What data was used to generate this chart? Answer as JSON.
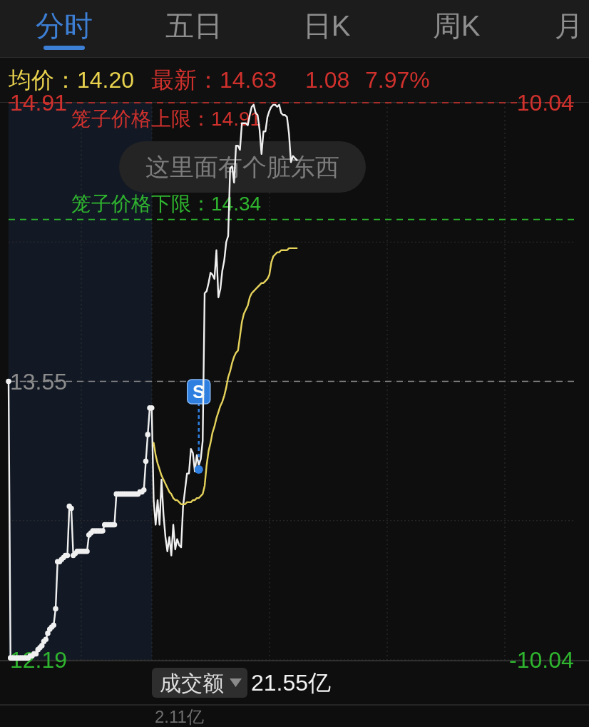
{
  "chart_data": {
    "type": "line",
    "annotations": [
      "分时",
      "五日",
      "日K",
      "周K",
      "月",
      "均价：14.20",
      "最新：14.63",
      "1.08",
      "7.97%",
      "这里面有个脏东西",
      "成交额",
      "21.55亿",
      "2.11亿"
    ],
    "categories": [
      null,
      null,
      null,
      null,
      null,
      null,
      null,
      null,
      null,
      null,
      null,
      null,
      null,
      null,
      null,
      null,
      null,
      null,
      null,
      null,
      null,
      null,
      null,
      null,
      null,
      null,
      null,
      null,
      null,
      null,
      null,
      null,
      null,
      null,
      null,
      null,
      null,
      null,
      null,
      null,
      null,
      null,
      null,
      null,
      null,
      null,
      null,
      null,
      null,
      null,
      null,
      null,
      null,
      null,
      null,
      null,
      null,
      null,
      null,
      null,
      null,
      null,
      null,
      null,
      null,
      null,
      null,
      null,
      null,
      null,
      null,
      null,
      null,
      null,
      null,
      null,
      null,
      null,
      null,
      null,
      null,
      null,
      null,
      null,
      null,
      null,
      null,
      null,
      null,
      null,
      null,
      null,
      null,
      null,
      null,
      null,
      null,
      null,
      null,
      null,
      null,
      null,
      null,
      null,
      null,
      null,
      null,
      null,
      null,
      null,
      null,
      null,
      null,
      null,
      null,
      null,
      null,
      null,
      null,
      null,
      null,
      null,
      null,
      null,
      null,
      null,
      null,
      null,
      null,
      null,
      null,
      null,
      null,
      null,
      null,
      null,
      null,
      null,
      null,
      null,
      null,
      null,
      null,
      null,
      null,
      null,
      null,
      null,
      null,
      null,
      null,
      null,
      null,
      null,
      null,
      null,
      null,
      null,
      null,
      null,
      null,
      null,
      null,
      null,
      null,
      null,
      null,
      null,
      null,
      null,
      null,
      null,
      null,
      null,
      null,
      null,
      null,
      null,
      null,
      null,
      null,
      null,
      null,
      null,
      null,
      null,
      null,
      null,
      null,
      null,
      null,
      null,
      null,
      null,
      null,
      null,
      null,
      null,
      null,
      null,
      null,
      null,
      null,
      null,
      null,
      null,
      null,
      null,
      null,
      null,
      null,
      null,
      null,
      null,
      null,
      null,
      null,
      null,
      null,
      null,
      null,
      null,
      null,
      null,
      null,
      null,
      null,
      null,
      null,
      null,
      null,
      null,
      null,
      null,
      null,
      null,
      null,
      null,
      null,
      null,
      null,
      null,
      null,
      null,
      null,
      null,
      null,
      null,
      null,
      null,
      null,
      null,
      null,
      null,
      null,
      null,
      null,
      null,
      null,
      null,
      null,
      null,
      null,
      null,
      null,
      null,
      null,
      null,
      null,
      null,
      null,
      null,
      null,
      null,
      null,
      null,
      null,
      null,
      null,
      null,
      null,
      null,
      null,
      null,
      null,
      null,
      null,
      null,
      null,
      null
    ],
    "series": [
      {
        "color": "#f0f0f0",
        "marker": "circle",
        "values": [
          13.55,
          12.2,
          12.2,
          12.2,
          12.2,
          12.2,
          12.2,
          12.2,
          12.2,
          12.2,
          12.2,
          12.21,
          12.21,
          12.22,
          12.22,
          12.24,
          12.25,
          12.26,
          12.28,
          12.29,
          12.32,
          12.34,
          12.35,
          12.36,
          12.44,
          12.67,
          12.67,
          12.68,
          12.69,
          12.7,
          12.7,
          12.94,
          12.93,
          12.7,
          12.71,
          12.72,
          12.72,
          12.72,
          12.72,
          12.72,
          12.72,
          12.8,
          12.81,
          12.82,
          12.82,
          12.82,
          12.82,
          12.82,
          12.82,
          12.85,
          12.85,
          12.85,
          12.85,
          12.85,
          12.85,
          13,
          13,
          13,
          13,
          13,
          13,
          13,
          13,
          13,
          13,
          13,
          13,
          13.01,
          13.01,
          13.02,
          13.16,
          13.29,
          13.42,
          13.42,
          null,
          null,
          null,
          null,
          null,
          null,
          null,
          null,
          null,
          null,
          null,
          null,
          null,
          null,
          null,
          null,
          null,
          null,
          null,
          null,
          null,
          null,
          null,
          null,
          null,
          null,
          null,
          null,
          null,
          null,
          null,
          null,
          null,
          null,
          null,
          null,
          null,
          null,
          null,
          null,
          null,
          null,
          null,
          null,
          null,
          null,
          null,
          null,
          null,
          null,
          null,
          null,
          null,
          null,
          null,
          null,
          null,
          null,
          null,
          null,
          null,
          null,
          null,
          null,
          null,
          null,
          null,
          null,
          null,
          null,
          null,
          null,
          null,
          null,
          null,
          null,
          null,
          null,
          null,
          null,
          null,
          null,
          null,
          null,
          null,
          null,
          null,
          null,
          null,
          null,
          null,
          null,
          null,
          null,
          null,
          null,
          null,
          null,
          null,
          null,
          null,
          null,
          null,
          null,
          null,
          null,
          null,
          null,
          null,
          null,
          null,
          null,
          null,
          null,
          null,
          null,
          null,
          null,
          null,
          null,
          null,
          null,
          null,
          null,
          null,
          null,
          null,
          null,
          null,
          null,
          null,
          null,
          null,
          null,
          null,
          null,
          null,
          null,
          null,
          null,
          null,
          null,
          null,
          null,
          null,
          null,
          null,
          null,
          null,
          null,
          null,
          null,
          null,
          null,
          null,
          null,
          null,
          null,
          null,
          null,
          null,
          null,
          null,
          null,
          null,
          null,
          null,
          null,
          null,
          null,
          null,
          null,
          null,
          null,
          null,
          null,
          null,
          null,
          null,
          null,
          null,
          null,
          null,
          null,
          null,
          null,
          null,
          null,
          null,
          null,
          null,
          null,
          null,
          null,
          null,
          null,
          null,
          null,
          null,
          null,
          null,
          null,
          null,
          null,
          null,
          null,
          null,
          null,
          null,
          null,
          null,
          null,
          null,
          null,
          null,
          null
        ]
      },
      {
        "color": "#f0f0f0",
        "values": [
          null,
          null,
          null,
          null,
          null,
          null,
          null,
          null,
          null,
          null,
          null,
          null,
          null,
          null,
          null,
          null,
          null,
          null,
          null,
          null,
          null,
          null,
          null,
          null,
          null,
          null,
          null,
          null,
          null,
          null,
          null,
          null,
          null,
          null,
          null,
          null,
          null,
          null,
          null,
          null,
          null,
          null,
          null,
          null,
          null,
          null,
          null,
          null,
          null,
          null,
          null,
          null,
          null,
          null,
          null,
          null,
          null,
          null,
          null,
          null,
          null,
          null,
          null,
          null,
          null,
          null,
          null,
          null,
          null,
          null,
          null,
          null,
          null,
          13.42,
          12.97,
          12.85,
          12.97,
          12.85,
          13.07,
          12.9,
          12.79,
          12.72,
          12.79,
          12.7,
          12.85,
          12.73,
          12.78,
          12.75,
          12.74,
          12.94,
          13.02,
          13.1,
          13.1,
          13.22,
          13.2,
          13.11,
          13.19,
          13.14,
          13.17,
          13.26,
          13.98,
          13.99,
          14.03,
          14.08,
          14.07,
          14.05,
          14.19,
          13.96,
          14,
          14.09,
          14.14,
          14.23,
          14.26,
          14.59,
          14.6,
          14.52,
          14.7,
          14.7,
          14.68,
          14.81,
          14.81,
          14.81,
          14.8,
          14.85,
          14.89,
          14.9,
          14.86,
          14.85,
          14.78,
          14.66,
          14.77,
          14.77,
          14.84,
          14.87,
          14.89,
          14.9,
          14.9,
          14.89,
          14.9,
          14.86,
          14.85,
          14.85,
          14.84,
          14.76,
          14.62,
          14.65,
          14.64,
          14.63,
          null,
          null,
          null,
          null,
          null,
          null,
          null,
          null,
          null,
          null,
          null,
          null,
          null,
          null,
          null,
          null,
          null,
          null,
          null,
          null,
          null,
          null,
          null,
          null,
          null,
          null,
          null,
          null,
          null,
          null,
          null,
          null,
          null,
          null,
          null,
          null,
          null,
          null,
          null,
          null,
          null,
          null,
          null,
          null,
          null,
          null,
          null,
          null,
          null,
          null,
          null,
          null,
          null,
          null,
          null,
          null,
          null,
          null,
          null,
          null,
          null,
          null,
          null,
          null,
          null,
          null,
          null,
          null,
          null,
          null,
          null,
          null,
          null,
          null,
          null,
          null,
          null,
          null,
          null,
          null,
          null,
          null,
          null,
          null,
          null,
          null,
          null,
          null,
          null,
          null,
          null,
          null,
          null,
          null,
          null,
          null,
          null,
          null,
          null,
          null,
          null,
          null,
          null,
          null,
          null,
          null,
          null,
          null,
          null,
          null,
          null,
          null,
          null,
          null,
          null,
          null,
          null,
          null,
          null,
          null,
          null,
          null,
          null,
          null,
          null,
          null,
          null,
          null,
          null,
          null,
          null,
          null,
          null,
          null,
          null,
          null,
          null,
          null,
          null,
          null,
          null,
          null
        ]
      },
      {
        "color": "#e6d35c",
        "values": [
          null,
          null,
          null,
          null,
          null,
          null,
          null,
          null,
          null,
          null,
          null,
          null,
          null,
          null,
          null,
          null,
          null,
          null,
          null,
          null,
          null,
          null,
          null,
          null,
          null,
          null,
          null,
          null,
          null,
          null,
          null,
          null,
          null,
          null,
          null,
          null,
          null,
          null,
          null,
          null,
          null,
          null,
          null,
          null,
          null,
          null,
          null,
          null,
          null,
          null,
          null,
          null,
          null,
          null,
          null,
          null,
          null,
          null,
          null,
          null,
          null,
          null,
          null,
          null,
          null,
          null,
          null,
          null,
          null,
          null,
          null,
          null,
          null,
          null,
          13.25,
          13.19,
          13.15,
          13.12,
          13.09,
          13.07,
          13.05,
          13.03,
          13.01,
          13,
          12.98,
          12.97,
          12.97,
          12.96,
          12.95,
          12.95,
          12.95,
          12.96,
          12.96,
          12.96,
          12.97,
          12.97,
          12.98,
          12.98,
          12.99,
          13,
          13.04,
          13.14,
          13.21,
          13.25,
          13.3,
          13.33,
          13.37,
          13.4,
          13.43,
          13.45,
          13.48,
          13.52,
          13.57,
          13.6,
          13.64,
          13.67,
          13.69,
          13.7,
          13.77,
          13.84,
          13.88,
          13.9,
          13.92,
          13.96,
          13.98,
          13.99,
          14,
          14.01,
          14.02,
          14.03,
          14.03,
          14.04,
          14.05,
          14.07,
          14.13,
          14.16,
          14.17,
          14.18,
          14.18,
          14.19,
          14.19,
          14.19,
          14.19,
          14.2,
          14.2,
          14.2,
          14.2,
          14.2,
          null,
          null,
          null,
          null,
          null,
          null,
          null,
          null,
          null,
          null,
          null,
          null,
          null,
          null,
          null,
          null,
          null,
          null,
          null,
          null,
          null,
          null,
          null,
          null,
          null,
          null,
          null,
          null,
          null,
          null,
          null,
          null,
          null,
          null,
          null,
          null,
          null,
          null,
          null,
          null,
          null,
          null,
          null,
          null,
          null,
          null,
          null,
          null,
          null,
          null,
          null,
          null,
          null,
          null,
          null,
          null,
          null,
          null,
          null,
          null,
          null,
          null,
          null,
          null,
          null,
          null,
          null,
          null,
          null,
          null,
          null,
          null,
          null,
          null,
          null,
          null,
          null,
          null,
          null,
          null,
          null,
          null,
          null,
          null,
          null,
          null,
          null,
          null,
          null,
          null,
          null,
          null,
          null,
          null,
          null,
          null,
          null,
          null,
          null,
          null,
          null,
          null,
          null,
          null,
          null,
          null,
          null,
          null,
          null,
          null,
          null,
          null,
          null,
          null,
          null,
          null,
          null,
          null,
          null,
          null,
          null,
          null,
          null,
          null,
          null,
          null,
          null,
          null,
          null,
          null,
          null,
          null,
          null,
          null,
          null,
          null,
          null,
          null,
          null,
          null,
          null,
          null
        ]
      },
      {
        "type": "scatter",
        "color": "#2f7fe0",
        "values": [
          null,
          null,
          null,
          null,
          null,
          null,
          null,
          null,
          null,
          null,
          null,
          null,
          null,
          null,
          null,
          null,
          null,
          null,
          null,
          null,
          null,
          null,
          null,
          null,
          null,
          null,
          null,
          null,
          null,
          null,
          null,
          null,
          null,
          null,
          null,
          null,
          null,
          null,
          null,
          null,
          null,
          null,
          null,
          null,
          null,
          null,
          null,
          null,
          null,
          null,
          null,
          null,
          null,
          null,
          null,
          null,
          null,
          null,
          null,
          null,
          null,
          null,
          null,
          null,
          null,
          null,
          null,
          null,
          null,
          null,
          null,
          null,
          null,
          null,
          null,
          null,
          null,
          null,
          null,
          null,
          null,
          null,
          null,
          null,
          null,
          null,
          null,
          null,
          null,
          null,
          null,
          null,
          null,
          null,
          null,
          null,
          null,
          13.12,
          null,
          null,
          null,
          null,
          null,
          null,
          null,
          null,
          null,
          null,
          null,
          null,
          null,
          null,
          null,
          null,
          null,
          null,
          null,
          null,
          null,
          null,
          null,
          null,
          null,
          null,
          null,
          null,
          null,
          null,
          null,
          null,
          null,
          null,
          null,
          null,
          null,
          null,
          null,
          null,
          null,
          null,
          null,
          null,
          null,
          null,
          null,
          null,
          null,
          null,
          null,
          null,
          null,
          null,
          null,
          null,
          null,
          null,
          null,
          null,
          null,
          null,
          null,
          null,
          null,
          null,
          null,
          null,
          null,
          null,
          null,
          null,
          null,
          null,
          null,
          null,
          null,
          null,
          null,
          null,
          null,
          null,
          null,
          null,
          null,
          null,
          null,
          null,
          null,
          null,
          null,
          null,
          null,
          null,
          null,
          null,
          null,
          null,
          null,
          null,
          null,
          null,
          null,
          null,
          null,
          null,
          null,
          null,
          null,
          null,
          null,
          null,
          null,
          null,
          null,
          null,
          null,
          null,
          null,
          null,
          null,
          null,
          null,
          null,
          null,
          null,
          null,
          null,
          null,
          null,
          null,
          null,
          null,
          null,
          null,
          null,
          null,
          null,
          null,
          null,
          null,
          null,
          null,
          null,
          null,
          null,
          null,
          null,
          null,
          null,
          null,
          null,
          null,
          null,
          null,
          null,
          null,
          null,
          null,
          null,
          null,
          null,
          null,
          null,
          null,
          null,
          null,
          null,
          null,
          null,
          null,
          null,
          null,
          null,
          null,
          null,
          null,
          null,
          null,
          null,
          null,
          null,
          null,
          null,
          null,
          null,
          null,
          null,
          null,
          null,
          null,
          null
        ],
        "value_labels": [
          null,
          null,
          null,
          null,
          null,
          null,
          null,
          null,
          null,
          null,
          null,
          null,
          null,
          null,
          null,
          null,
          null,
          null,
          null,
          null,
          null,
          null,
          null,
          null,
          null,
          null,
          null,
          null,
          null,
          null,
          null,
          null,
          null,
          null,
          null,
          null,
          null,
          null,
          null,
          null,
          null,
          null,
          null,
          null,
          null,
          null,
          null,
          null,
          null,
          null,
          null,
          null,
          null,
          null,
          null,
          null,
          null,
          null,
          null,
          null,
          null,
          null,
          null,
          null,
          null,
          null,
          null,
          null,
          null,
          null,
          null,
          null,
          null,
          null,
          null,
          null,
          null,
          null,
          null,
          null,
          null,
          null,
          null,
          null,
          null,
          null,
          null,
          null,
          null,
          null,
          null,
          null,
          null,
          null,
          null,
          null,
          null,
          "S",
          null,
          null,
          null,
          null,
          null,
          null,
          null,
          null,
          null,
          null,
          null,
          null,
          null,
          null,
          null,
          null,
          null,
          null,
          null,
          null,
          null,
          null,
          null,
          null,
          null,
          null,
          null,
          null,
          null,
          null,
          null,
          null,
          null,
          null,
          null,
          null,
          null,
          null,
          null,
          null,
          null,
          null,
          null,
          null,
          null,
          null,
          null,
          null,
          null,
          null,
          null,
          null,
          null,
          null,
          null,
          null,
          null,
          null,
          null,
          null,
          null,
          null,
          null,
          null,
          null,
          null,
          null,
          null,
          null,
          null,
          null,
          null,
          null,
          null,
          null,
          null,
          null,
          null,
          null,
          null,
          null,
          null,
          null,
          null,
          null,
          null,
          null,
          null,
          null,
          null,
          null,
          null,
          null,
          null,
          null,
          null,
          null,
          null,
          null,
          null,
          null,
          null,
          null,
          null,
          null,
          null,
          null,
          null,
          null,
          null,
          null,
          null,
          null,
          null,
          null,
          null,
          null,
          null,
          null,
          null,
          null,
          null,
          null,
          null,
          null,
          null,
          null,
          null,
          null,
          null,
          null,
          null,
          null,
          null,
          null,
          null,
          null,
          null,
          null,
          null,
          null,
          null,
          null,
          null,
          null,
          null,
          null,
          null,
          null,
          null,
          null,
          null,
          null,
          null,
          null,
          null,
          null,
          null,
          null,
          null,
          null,
          null,
          null,
          null,
          null,
          null,
          null,
          null,
          null,
          null,
          null,
          null,
          null,
          null,
          null,
          null,
          null,
          null,
          null,
          null,
          null,
          null,
          null,
          null,
          null,
          null,
          null,
          null,
          null,
          null,
          null,
          null
        ]
      }
    ],
    "ylim": [
      12.19,
      14.91
    ],
    "yticks": [
      12.19,
      {
        "value": 12.87,
        "label": null
      },
      13.55,
      {
        "value": 14.23,
        "label": null
      },
      14.91
    ],
    "y2lim": [
      -10.04,
      10.04
    ],
    "y2ticks": [
      -10.04,
      10.04
    ],
    "grid": "y",
    "ref_lines": [
      {
        "axis": "y",
        "value": 14.91,
        "label": "笼子价格上限：14.91",
        "color": "#d0312d",
        "line_style": "dashed"
      },
      {
        "axis": "y",
        "value": 14.34,
        "label": "笼子价格下限：14.34",
        "color": "#2fb52f",
        "line_style": "dashed"
      },
      {
        "axis": "y",
        "value": 13.55,
        "color": "#8c8c8c",
        "line_style": "dashed"
      }
    ]
  }
}
